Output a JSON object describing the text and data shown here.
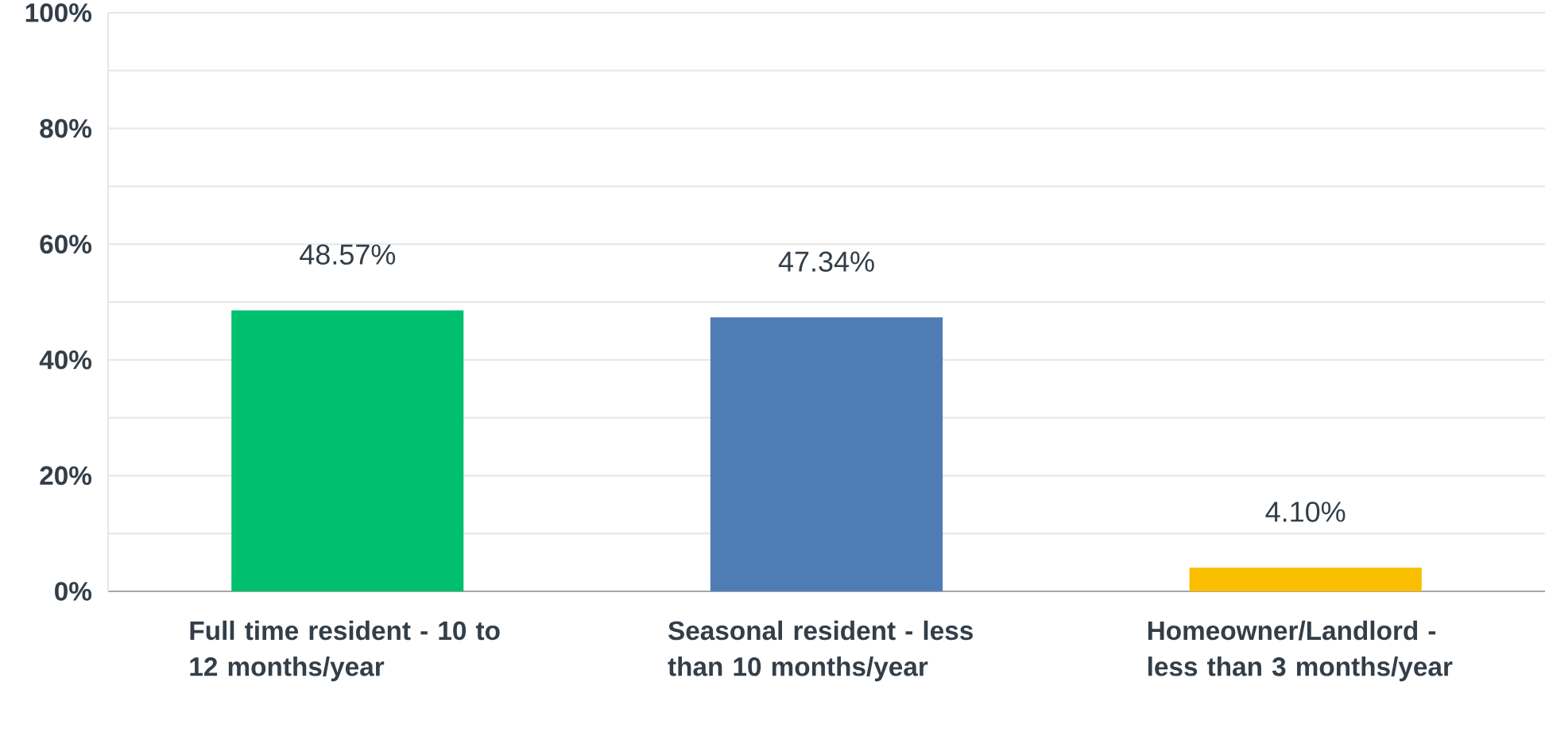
{
  "chart_data": {
    "type": "bar",
    "categories": [
      "Full time resident - 10 to 12 months/year",
      "Seasonal resident - less than 10 months/year",
      "Homeowner/Landlord - less than 3 months/year"
    ],
    "values": [
      48.57,
      47.34,
      4.1
    ],
    "colors": [
      "#00bf6f",
      "#507cb6",
      "#f9be00"
    ],
    "value_labels": [
      "48.57%",
      "47.34%",
      "4.10%"
    ],
    "ylim": [
      0,
      100
    ],
    "yticks": [
      {
        "value": 0,
        "label": "0%"
      },
      {
        "value": 10,
        "label": null
      },
      {
        "value": 20,
        "label": "20%"
      },
      {
        "value": 30,
        "label": null
      },
      {
        "value": 40,
        "label": "40%"
      },
      {
        "value": 50,
        "label": null
      },
      {
        "value": 60,
        "label": "60%"
      },
      {
        "value": 70,
        "label": null
      },
      {
        "value": 80,
        "label": "80%"
      },
      {
        "value": 90,
        "label": null
      },
      {
        "value": 100,
        "label": "100%"
      }
    ],
    "grid": "y"
  }
}
